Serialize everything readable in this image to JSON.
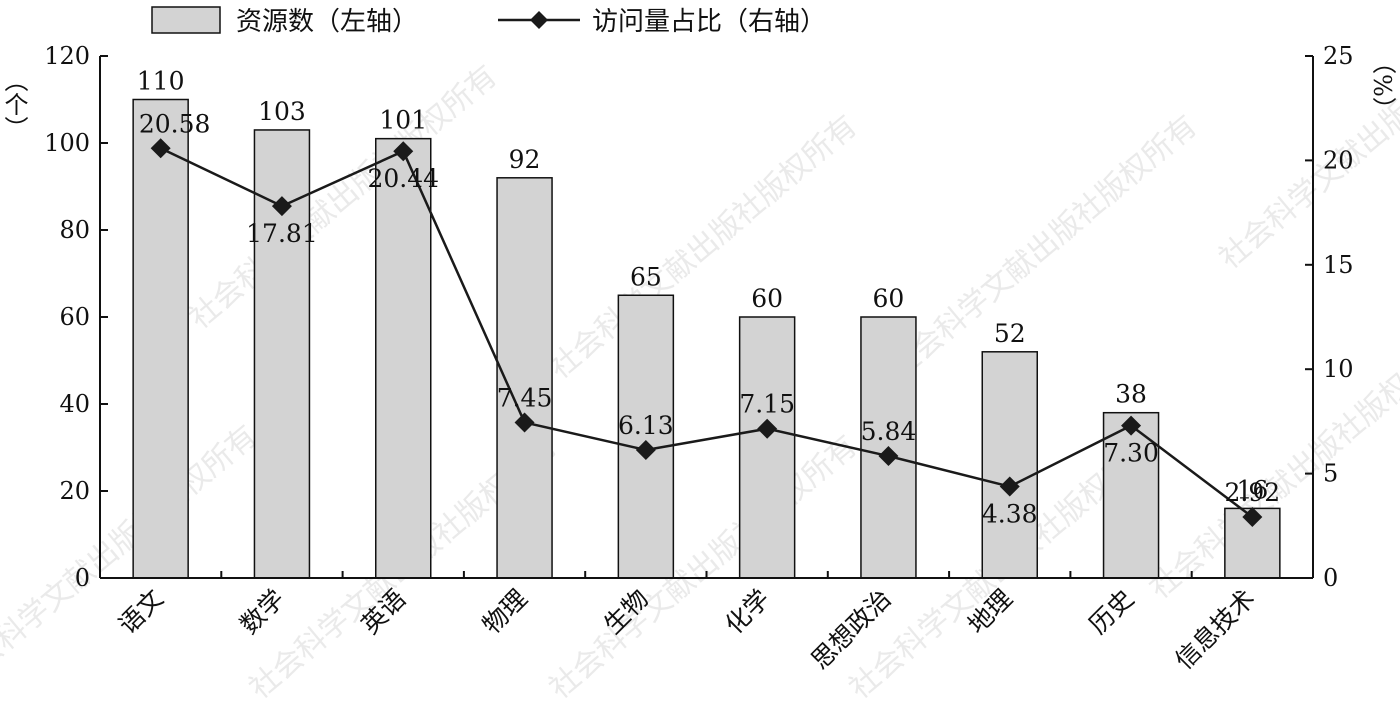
{
  "chart_data": {
    "type": "bar",
    "categories": [
      "语文",
      "数学",
      "英语",
      "物理",
      "生物",
      "化学",
      "思想政治",
      "地理",
      "历史",
      "信息技术"
    ],
    "series": [
      {
        "name": "资源数（左轴）",
        "type": "bar",
        "axis": "left",
        "values": [
          110,
          103,
          101,
          92,
          65,
          60,
          60,
          52,
          38,
          16
        ],
        "labels": [
          "110",
          "103",
          "101",
          "92",
          "65",
          "60",
          "60",
          "52",
          "38",
          "16"
        ],
        "color": "#d3d3d3"
      },
      {
        "name": "访问量占比（右轴）",
        "type": "line",
        "axis": "right",
        "values": [
          20.58,
          17.81,
          20.44,
          7.45,
          6.13,
          7.15,
          5.84,
          4.38,
          7.3,
          2.92
        ],
        "labels": [
          "20.58",
          "17.81",
          "20.44",
          "7.45",
          "6.13",
          "7.15",
          "5.84",
          "4.38",
          "7.30",
          "2.92"
        ],
        "color": "#1a1a1a",
        "marker": "diamond"
      }
    ],
    "left_axis": {
      "unit_label": "（个）",
      "ylim": [
        0,
        120
      ],
      "ticks": [
        "0",
        "20",
        "40",
        "60",
        "80",
        "100",
        "120"
      ]
    },
    "right_axis": {
      "unit_label": "（%）",
      "ylim": [
        0,
        25
      ],
      "ticks": [
        "0",
        "5",
        "10",
        "15",
        "20",
        "25"
      ]
    },
    "legend": {
      "placement": "top-left"
    },
    "grid": false
  },
  "watermark": "社会科学文献出版社版权所有"
}
